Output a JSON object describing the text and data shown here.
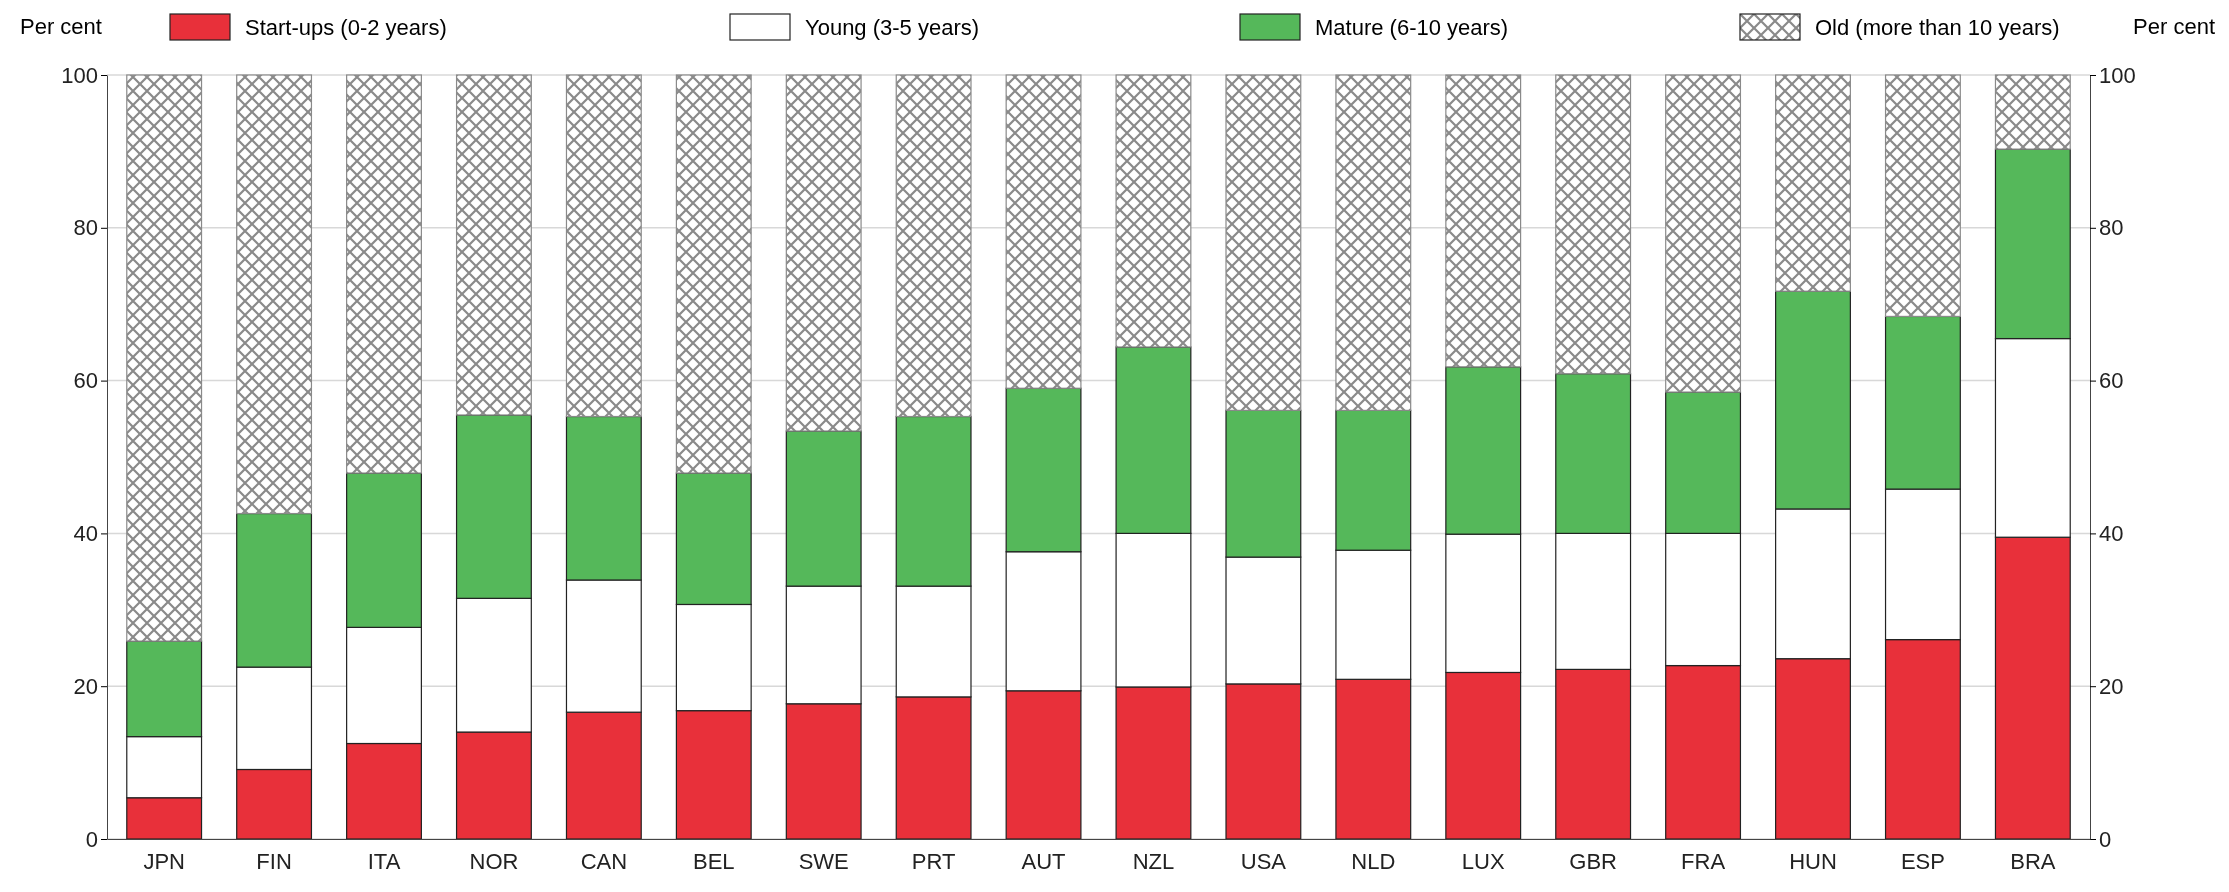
{
  "chart_data": {
    "type": "bar",
    "stacked": true,
    "ylabel": "Per cent",
    "y2label": "Per cent",
    "categories": [
      "JPN",
      "FIN",
      "ITA",
      "NOR",
      "CAN",
      "BEL",
      "SWE",
      "PRT",
      "AUT",
      "NZL",
      "USA",
      "NLD",
      "LUX",
      "GBR",
      "FRA",
      "HUN",
      "ESP",
      "BRA"
    ],
    "series": [
      {
        "name": "Start-ups (0-2 years)",
        "color": "#e8303a",
        "values": [
          5.4,
          9.1,
          12.5,
          14.0,
          16.6,
          16.8,
          17.7,
          18.6,
          19.4,
          19.9,
          20.3,
          20.9,
          21.8,
          22.2,
          22.7,
          23.6,
          26.1,
          39.5
        ]
      },
      {
        "name": "Young (3-5 years)",
        "color": "#ffffff",
        "values": [
          8.0,
          13.4,
          15.2,
          17.5,
          17.3,
          13.9,
          15.4,
          14.5,
          18.2,
          20.1,
          16.6,
          16.9,
          18.1,
          17.8,
          17.3,
          19.6,
          19.7,
          26.0
        ]
      },
      {
        "name": "Mature (6-10 years)",
        "color": "#55b85a",
        "values": [
          12.5,
          20.1,
          20.2,
          24.0,
          21.4,
          17.2,
          20.3,
          22.2,
          21.4,
          24.4,
          19.2,
          18.3,
          21.9,
          20.9,
          18.5,
          28.5,
          22.6,
          24.8
        ]
      },
      {
        "name": "Old (more than 10 years)",
        "color": "#8a8a8a",
        "values": [
          74.1,
          57.4,
          52.1,
          44.5,
          44.7,
          52.1,
          46.6,
          44.7,
          41.0,
          35.6,
          43.9,
          43.9,
          38.2,
          39.1,
          41.5,
          28.3,
          31.6,
          9.7
        ]
      }
    ],
    "ylim": [
      0,
      100
    ],
    "yticks": [
      0,
      20,
      40,
      60,
      80,
      100
    ],
    "y2lim": [
      0,
      100
    ],
    "y2ticks": [
      0,
      20,
      40,
      60,
      80,
      100
    ],
    "grid": "y",
    "legend": "top"
  }
}
